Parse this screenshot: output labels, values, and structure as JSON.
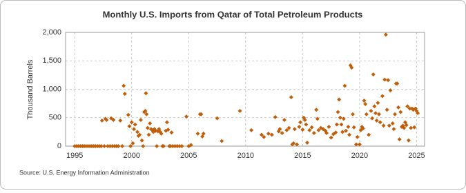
{
  "chart_data": {
    "type": "scatter",
    "title": "Monthly U.S. Imports from Qatar of Total Petroleum Products",
    "y_label": "Thousand Barrels",
    "source": "Source: U.S. Energy Information Administration",
    "xlim": [
      1994.2,
      2025.7
    ],
    "xticks": [
      1995,
      2000,
      2005,
      2010,
      2015,
      2020,
      2025
    ],
    "ylim": [
      0,
      2000
    ],
    "yticks": [
      0,
      500,
      {
        "value": 1000,
        "label": "1,000"
      },
      {
        "value": 1500,
        "label": "1,500"
      },
      {
        "value": 2000,
        "label": "2,000"
      }
    ],
    "grid": true,
    "color": "#c0600c",
    "x": [
      1995.0,
      1995.17,
      1995.33,
      1995.5,
      1995.67,
      1995.83,
      1996.0,
      1996.17,
      1996.33,
      1996.5,
      1996.67,
      1996.83,
      1997.0,
      1997.17,
      1997.33,
      1997.4,
      1997.6,
      1997.7,
      1997.8,
      1997.9,
      1998.1,
      1998.2,
      1998.3,
      1998.4,
      1998.5,
      1998.67,
      1998.83,
      1999.0,
      1999.17,
      1999.3,
      1999.4,
      1999.7,
      1999.8,
      1999.9,
      2000.0,
      2000.1,
      2000.2,
      2000.3,
      2000.5,
      2000.6,
      2000.7,
      2000.8,
      2000.9,
      2001.0,
      2001.1,
      2001.2,
      2001.25,
      2001.3,
      2001.4,
      2001.5,
      2001.6,
      2001.7,
      2001.8,
      2001.9,
      2002.0,
      2002.1,
      2002.2,
      2002.3,
      2002.4,
      2002.5,
      2002.6,
      2002.7,
      2002.8,
      2003.0,
      2003.1,
      2003.2,
      2003.3,
      2003.4,
      2003.5,
      2003.6,
      2003.8,
      2004.0,
      2004.2,
      2004.4,
      2004.8,
      2005.0,
      2005.2,
      2005.8,
      2006.0,
      2006.1,
      2006.2,
      2006.3,
      2007.5,
      2007.9,
      2009.5,
      2010.5,
      2011.4,
      2011.6,
      2012.0,
      2012.3,
      2012.6,
      2012.9,
      2013.0,
      2013.2,
      2013.4,
      2013.6,
      2013.8,
      2014.0,
      2014.1,
      2014.2,
      2014.3,
      2014.5,
      2014.7,
      2014.8,
      2015.0,
      2015.1,
      2015.2,
      2015.3,
      2015.4,
      2015.6,
      2015.8,
      2016.0,
      2016.2,
      2016.3,
      2016.4,
      2016.6,
      2016.8,
      2017.0,
      2017.1,
      2017.3,
      2017.5,
      2017.7,
      2017.9,
      2018.0,
      2018.1,
      2018.2,
      2018.3,
      2018.4,
      2018.5,
      2018.6,
      2018.7,
      2018.8,
      2019.0,
      2019.1,
      2019.2,
      2019.3,
      2019.4,
      2019.5,
      2019.7,
      2019.8,
      2020.0,
      2020.1,
      2020.2,
      2020.3,
      2020.4,
      2020.5,
      2020.6,
      2020.8,
      2021.0,
      2021.1,
      2021.2,
      2021.3,
      2021.4,
      2021.5,
      2021.6,
      2021.7,
      2021.8,
      2022.0,
      2022.1,
      2022.2,
      2022.3,
      2022.4,
      2022.5,
      2022.6,
      2022.7,
      2022.9,
      2023.0,
      2023.1,
      2023.2,
      2023.3,
      2023.4,
      2023.5,
      2023.6,
      2023.7,
      2023.8,
      2023.9,
      2024.0,
      2024.1,
      2024.2,
      2024.3,
      2024.4,
      2024.5,
      2024.6,
      2024.7,
      2024.8,
      2024.9,
      2025.0,
      2025.1
    ],
    "values": [
      0,
      0,
      0,
      0,
      0,
      0,
      0,
      0,
      0,
      0,
      0,
      0,
      0,
      0,
      0,
      450,
      0,
      480,
      460,
      0,
      0,
      490,
      0,
      460,
      0,
      0,
      0,
      450,
      0,
      1060,
      920,
      550,
      350,
      0,
      420,
      50,
      300,
      380,
      250,
      180,
      200,
      460,
      100,
      0,
      600,
      620,
      930,
      560,
      320,
      200,
      400,
      300,
      280,
      250,
      300,
      270,
      0,
      260,
      300,
      250,
      220,
      0,
      0,
      270,
      420,
      290,
      0,
      0,
      240,
      0,
      0,
      0,
      0,
      0,
      520,
      0,
      20,
      220,
      560,
      560,
      170,
      220,
      490,
      90,
      620,
      280,
      200,
      160,
      220,
      200,
      510,
      260,
      300,
      230,
      460,
      280,
      320,
      860,
      30,
      50,
      300,
      30,
      340,
      420,
      290,
      500,
      460,
      380,
      60,
      280,
      330,
      230,
      640,
      480,
      280,
      320,
      300,
      270,
      230,
      340,
      150,
      210,
      240,
      380,
      600,
      820,
      500,
      380,
      250,
      480,
      1060,
      270,
      340,
      200,
      1420,
      1380,
      560,
      330,
      30,
      160,
      30,
      280,
      340,
      310,
      800,
      740,
      560,
      200,
      620,
      490,
      1260,
      700,
      580,
      450,
      760,
      560,
      420,
      880,
      360,
      1170,
      1960,
      640,
      1160,
      360,
      980,
      400,
      300,
      560,
      1100,
      1100,
      680,
      120,
      600,
      340,
      360,
      320,
      420,
      370,
      700,
      100,
      660,
      320,
      660,
      640,
      330,
      660,
      620,
      580
    ]
  }
}
